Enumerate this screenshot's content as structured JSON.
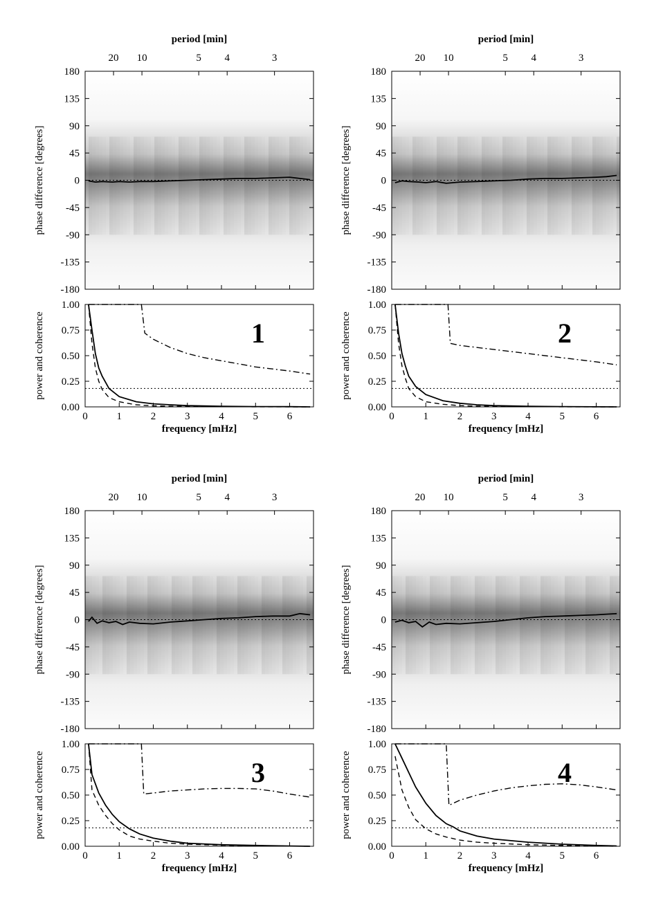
{
  "chart_data": [
    {
      "panel": "1",
      "type": "line",
      "phase_plot": {
        "top_axis_label": "period [min]",
        "period_ticks": [
          20,
          10,
          5,
          4,
          3
        ],
        "ylabel": "phase difference [degrees]",
        "yticks": [
          180,
          135,
          90,
          45,
          0,
          -45,
          -90,
          -135,
          -180
        ],
        "ylim": [
          -180,
          180
        ],
        "series": [
          {
            "x": [
              0.1,
              0.3,
              0.5,
              0.8,
              1.0,
              1.3,
              1.6,
              2.0,
              2.5,
              3.0,
              3.5,
              4.0,
              4.5,
              5.0,
              5.5,
              6.0,
              6.3,
              6.6
            ],
            "y": [
              -1,
              -3,
              -2,
              -3,
              -2,
              -3,
              -2,
              -2,
              -1,
              0,
              1,
              2,
              3,
              3,
              4,
              5,
              3,
              1
            ]
          }
        ]
      },
      "power_plot": {
        "ylabel": "power and coherence",
        "xlabel": "frequency [mHz]",
        "xticks": [
          0,
          1,
          2,
          3,
          4,
          5,
          6
        ],
        "yticks": [
          "1.00",
          "0.75",
          "0.50",
          "0.25",
          "0.00"
        ],
        "xlim": [
          0,
          6.7
        ],
        "ylim": [
          0,
          1
        ],
        "series": [
          {
            "style": "solid",
            "x": [
              0.1,
              0.2,
              0.3,
              0.4,
              0.5,
              0.7,
              1.0,
              1.5,
              2.0,
              2.5,
              3.0,
              4.0,
              5.0,
              6.0,
              6.6
            ],
            "y": [
              1.0,
              0.75,
              0.52,
              0.38,
              0.3,
              0.18,
              0.1,
              0.05,
              0.03,
              0.02,
              0.012,
              0.006,
              0.003,
              0.002,
              0.0
            ]
          },
          {
            "style": "dashed",
            "x": [
              0.1,
              0.2,
              0.3,
              0.4,
              0.5,
              0.7,
              1.0,
              1.5,
              2.0,
              2.5,
              3.0,
              4.0,
              5.0,
              6.0,
              6.6
            ],
            "y": [
              1.0,
              0.62,
              0.38,
              0.25,
              0.17,
              0.09,
              0.05,
              0.02,
              0.01,
              0.006,
              0.004,
              0.002,
              0.001,
              0.0,
              0.0
            ]
          },
          {
            "style": "dashdot",
            "x": [
              0.1,
              1.65,
              1.75,
              2.0,
              2.5,
              3.0,
              3.5,
              4.0,
              4.5,
              5.0,
              5.5,
              6.0,
              6.6
            ],
            "y": [
              1.0,
              1.0,
              0.72,
              0.66,
              0.58,
              0.52,
              0.48,
              0.45,
              0.42,
              0.39,
              0.37,
              0.35,
              0.32
            ]
          },
          {
            "style": "dotted",
            "x": [
              0,
              6.7
            ],
            "y": [
              0.18,
              0.18
            ]
          }
        ]
      }
    },
    {
      "panel": "2",
      "type": "line",
      "phase_plot": {
        "top_axis_label": "period [min]",
        "period_ticks": [
          20,
          10,
          5,
          4,
          3
        ],
        "ylabel": "phase difference [degrees]",
        "yticks": [
          180,
          135,
          90,
          45,
          0,
          -45,
          -90,
          -135,
          -180
        ],
        "ylim": [
          -180,
          180
        ],
        "series": [
          {
            "x": [
              0.1,
              0.3,
              0.5,
              0.8,
              1.0,
              1.3,
              1.6,
              2.0,
              2.5,
              3.0,
              3.5,
              4.0,
              4.5,
              5.0,
              5.5,
              6.0,
              6.3,
              6.6
            ],
            "y": [
              -4,
              -1,
              -2,
              -3,
              -4,
              -2,
              -5,
              -3,
              -2,
              -1,
              0,
              2,
              3,
              3,
              4,
              5,
              6,
              8
            ]
          }
        ]
      },
      "power_plot": {
        "ylabel": "power and coherence",
        "xlabel": "frequency [mHz]",
        "xticks": [
          0,
          1,
          2,
          3,
          4,
          5,
          6
        ],
        "yticks": [
          "1.00",
          "0.75",
          "0.50",
          "0.25",
          "0.00"
        ],
        "xlim": [
          0,
          6.7
        ],
        "ylim": [
          0,
          1
        ],
        "series": [
          {
            "style": "solid",
            "x": [
              0.1,
              0.2,
              0.3,
              0.4,
              0.5,
              0.7,
              1.0,
              1.5,
              2.0,
              2.5,
              3.0,
              4.0,
              5.0,
              6.0,
              6.6
            ],
            "y": [
              1.0,
              0.72,
              0.52,
              0.4,
              0.3,
              0.2,
              0.12,
              0.06,
              0.035,
              0.02,
              0.012,
              0.006,
              0.003,
              0.001,
              0.0
            ]
          },
          {
            "style": "dashed",
            "x": [
              0.1,
              0.2,
              0.3,
              0.4,
              0.5,
              0.7,
              1.0,
              1.5,
              2.0,
              2.5,
              3.0,
              4.0,
              5.0,
              6.0,
              6.6
            ],
            "y": [
              1.0,
              0.62,
              0.4,
              0.28,
              0.18,
              0.1,
              0.05,
              0.025,
              0.012,
              0.007,
              0.004,
              0.002,
              0.001,
              0.0,
              0.0
            ]
          },
          {
            "style": "dashdot",
            "x": [
              0.1,
              1.65,
              1.72,
              2.0,
              3.0,
              4.0,
              5.0,
              6.0,
              6.6
            ],
            "y": [
              1.0,
              1.0,
              0.62,
              0.6,
              0.56,
              0.52,
              0.48,
              0.44,
              0.41
            ]
          },
          {
            "style": "dotted",
            "x": [
              0,
              6.7
            ],
            "y": [
              0.18,
              0.18
            ]
          }
        ]
      }
    },
    {
      "panel": "3",
      "type": "line",
      "phase_plot": {
        "top_axis_label": "period [min]",
        "period_ticks": [
          20,
          10,
          5,
          4,
          3
        ],
        "ylabel": "phase difference [degrees]",
        "yticks": [
          180,
          135,
          90,
          45,
          0,
          -45,
          -90,
          -135,
          -180
        ],
        "ylim": [
          -180,
          180
        ],
        "series": [
          {
            "x": [
              0.1,
              0.2,
              0.35,
              0.5,
              0.7,
              0.9,
              1.1,
              1.3,
              1.6,
              2.0,
              2.5,
              3.0,
              3.5,
              4.0,
              4.5,
              5.0,
              5.5,
              6.0,
              6.3,
              6.6
            ],
            "y": [
              -3,
              4,
              -6,
              -2,
              -5,
              -3,
              -8,
              -4,
              -6,
              -7,
              -4,
              -2,
              0,
              2,
              3,
              5,
              6,
              6,
              10,
              8
            ]
          }
        ]
      },
      "power_plot": {
        "ylabel": "power and coherence",
        "xlabel": "frequency [mHz]",
        "xticks": [
          0,
          1,
          2,
          3,
          4,
          5,
          6
        ],
        "yticks": [
          "1.00",
          "0.75",
          "0.50",
          "0.25",
          "0.00"
        ],
        "xlim": [
          0,
          6.7
        ],
        "ylim": [
          0,
          1
        ],
        "series": [
          {
            "style": "solid",
            "x": [
              0.1,
              0.2,
              0.4,
              0.6,
              0.8,
              1.0,
              1.3,
              1.6,
              2.0,
              2.5,
              3.0,
              4.0,
              5.0,
              6.0,
              6.6
            ],
            "y": [
              1.0,
              0.7,
              0.52,
              0.4,
              0.31,
              0.24,
              0.17,
              0.12,
              0.08,
              0.05,
              0.03,
              0.015,
              0.008,
              0.003,
              0.0
            ]
          },
          {
            "style": "dashed",
            "x": [
              0.1,
              0.2,
              0.4,
              0.6,
              0.8,
              1.0,
              1.3,
              1.6,
              2.0,
              2.5,
              3.0,
              4.0,
              5.0,
              6.0,
              6.6
            ],
            "y": [
              1.0,
              0.55,
              0.4,
              0.3,
              0.22,
              0.16,
              0.1,
              0.07,
              0.05,
              0.03,
              0.02,
              0.01,
              0.005,
              0.002,
              0.0
            ]
          },
          {
            "style": "dashdot",
            "x": [
              0.1,
              1.65,
              1.72,
              2.0,
              2.5,
              3.0,
              3.5,
              4.0,
              4.5,
              5.0,
              5.5,
              6.0,
              6.6
            ],
            "y": [
              1.0,
              1.0,
              0.51,
              0.52,
              0.54,
              0.55,
              0.56,
              0.565,
              0.565,
              0.56,
              0.54,
              0.51,
              0.48
            ]
          },
          {
            "style": "dotted",
            "x": [
              0,
              6.7
            ],
            "y": [
              0.18,
              0.18
            ]
          }
        ]
      }
    },
    {
      "panel": "4",
      "type": "line",
      "phase_plot": {
        "top_axis_label": "period [min]",
        "period_ticks": [
          20,
          10,
          5,
          4,
          3
        ],
        "ylabel": "phase difference [degrees]",
        "yticks": [
          180,
          135,
          90,
          45,
          0,
          -45,
          -90,
          -135,
          -180
        ],
        "ylim": [
          -180,
          180
        ],
        "series": [
          {
            "x": [
              0.1,
              0.3,
              0.5,
              0.7,
              0.9,
              1.1,
              1.3,
              1.6,
              2.0,
              2.5,
              3.0,
              3.5,
              4.0,
              4.5,
              5.0,
              5.5,
              6.0,
              6.3,
              6.6
            ],
            "y": [
              -4,
              -1,
              -5,
              -3,
              -12,
              -4,
              -8,
              -6,
              -7,
              -5,
              -3,
              0,
              3,
              5,
              6,
              7,
              8,
              9,
              10
            ]
          }
        ]
      },
      "power_plot": {
        "ylabel": "power and coherence",
        "xlabel": "frequency [mHz]",
        "xticks": [
          0,
          1,
          2,
          3,
          4,
          5,
          6
        ],
        "yticks": [
          "1.00",
          "0.75",
          "0.50",
          "0.25",
          "0.00"
        ],
        "xlim": [
          0,
          6.7
        ],
        "ylim": [
          0,
          1
        ],
        "series": [
          {
            "style": "solid",
            "x": [
              0.1,
              0.3,
              0.5,
              0.7,
              1.0,
              1.3,
              1.6,
              1.8,
              2.0,
              2.5,
              3.0,
              4.0,
              5.0,
              6.0,
              6.6
            ],
            "y": [
              1.0,
              0.86,
              0.72,
              0.58,
              0.42,
              0.3,
              0.22,
              0.19,
              0.15,
              0.1,
              0.07,
              0.04,
              0.02,
              0.008,
              0.003
            ]
          },
          {
            "style": "dashed",
            "x": [
              0.1,
              0.3,
              0.5,
              0.7,
              1.0,
              1.3,
              1.6,
              2.0,
              2.5,
              3.0,
              4.0,
              5.0,
              6.0,
              6.6
            ],
            "y": [
              0.88,
              0.55,
              0.38,
              0.26,
              0.17,
              0.12,
              0.09,
              0.06,
              0.04,
              0.03,
              0.015,
              0.008,
              0.003,
              0.0
            ]
          },
          {
            "style": "dashdot",
            "x": [
              0.1,
              1.6,
              1.68,
              2.0,
              2.5,
              3.0,
              3.5,
              4.0,
              4.5,
              5.0,
              5.5,
              6.0,
              6.6
            ],
            "y": [
              1.0,
              1.0,
              0.4,
              0.45,
              0.5,
              0.54,
              0.57,
              0.59,
              0.605,
              0.61,
              0.6,
              0.58,
              0.55
            ]
          },
          {
            "style": "dotted",
            "x": [
              0,
              6.7
            ],
            "y": [
              0.18,
              0.18
            ]
          }
        ]
      }
    }
  ]
}
